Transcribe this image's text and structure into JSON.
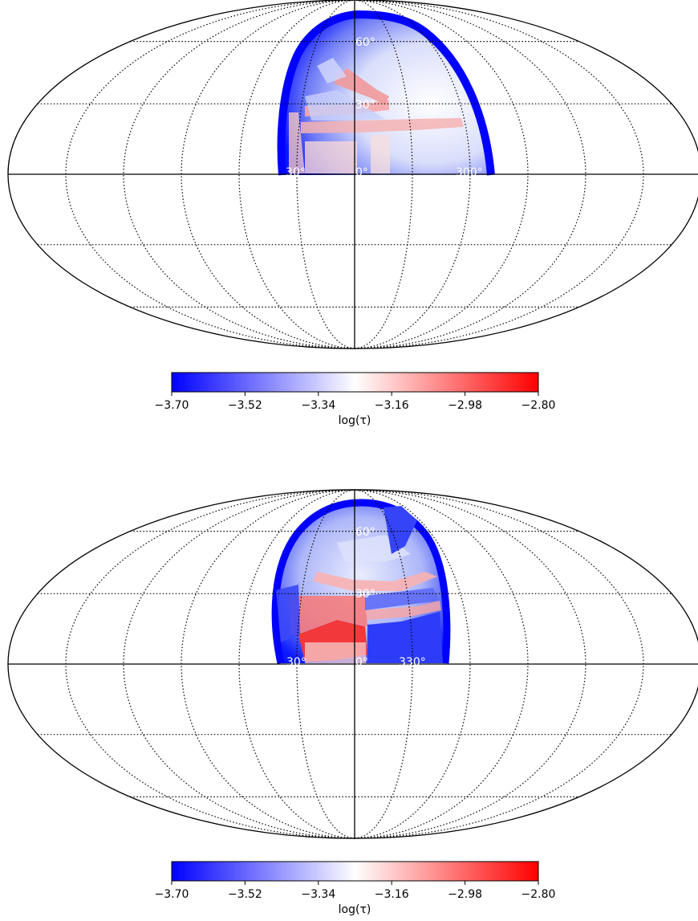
{
  "colorbar": {
    "label": "log(τ)",
    "ticks": [
      "−3.70",
      "−3.52",
      "−3.34",
      "−3.16",
      "−2.98",
      "−2.80"
    ],
    "vmin": -3.7,
    "vmax": -2.8,
    "colormap": [
      "#0000ff",
      "#ffffff",
      "#ff0000"
    ]
  },
  "chart_data": [
    {
      "type": "heatmap",
      "projection": "mollweide",
      "graticule": {
        "meridian_step_deg": 30,
        "parallel_step_deg": 30
      },
      "longitude_labels": [
        "30°",
        "0°",
        "300°"
      ],
      "latitude_labels": [
        "60°",
        "30°"
      ],
      "colorbar_label": "log(τ)",
      "vlim": [
        -3.7,
        -2.8
      ],
      "coverage": "visible hemisphere centred near longitude 330°, latitude 30° (northern half only)",
      "value_range_shown": [
        -3.7,
        -3.0
      ]
    },
    {
      "type": "heatmap",
      "projection": "mollweide",
      "graticule": {
        "meridian_step_deg": 30,
        "parallel_step_deg": 30
      },
      "longitude_labels": [
        "30°",
        "0°",
        "330°"
      ],
      "latitude_labels": [
        "60°",
        "30°"
      ],
      "colorbar_label": "log(τ)",
      "vlim": [
        -3.7,
        -2.8
      ],
      "coverage": "compact northern cap centred near longitude 0°, latitude 45°",
      "value_range_shown": [
        -3.7,
        -2.85
      ]
    }
  ]
}
